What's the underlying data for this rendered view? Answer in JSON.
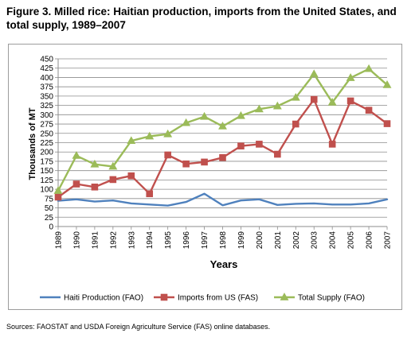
{
  "figure_title": "Figure 3. Milled rice: Haitian production, imports from the United States, and total supply, 1989–2007",
  "footnote": "Sources: FAOSTAT and USDA Foreign Agriculture Service (FAS) online databases.",
  "chart_data": {
    "type": "line",
    "title": "",
    "xlabel": "Years",
    "ylabel": "Thousands of MT",
    "ylim": [
      0,
      450
    ],
    "ytick_step": 25,
    "grid": "horizontal",
    "legend_position": "bottom",
    "categories": [
      "1989",
      "1990",
      "1991",
      "1992",
      "1993",
      "1994",
      "1995",
      "1996",
      "1997",
      "1998",
      "1999",
      "2000",
      "2001",
      "2002",
      "2003",
      "2004",
      "2005",
      "2006",
      "2007"
    ],
    "series": [
      {
        "name": "Haiti Production (FAO)",
        "color": "#4f81bd",
        "marker": "none",
        "values": [
          69,
          73,
          67,
          70,
          62,
          59,
          56,
          66,
          88,
          57,
          70,
          73,
          58,
          61,
          62,
          59,
          59,
          62,
          73
        ]
      },
      {
        "name": "Imports from US (FAS)",
        "color": "#c0504d",
        "marker": "square",
        "values": [
          79,
          114,
          106,
          126,
          136,
          88,
          192,
          168,
          173,
          185,
          216,
          221,
          194,
          275,
          341,
          221,
          337,
          312,
          276
        ]
      },
      {
        "name": "Total Supply (FAO)",
        "color": "#9bbb59",
        "marker": "triangle",
        "values": [
          96,
          190,
          167,
          161,
          230,
          242,
          248,
          278,
          295,
          269,
          297,
          315,
          323,
          346,
          409,
          333,
          399,
          423,
          380
        ]
      }
    ]
  }
}
